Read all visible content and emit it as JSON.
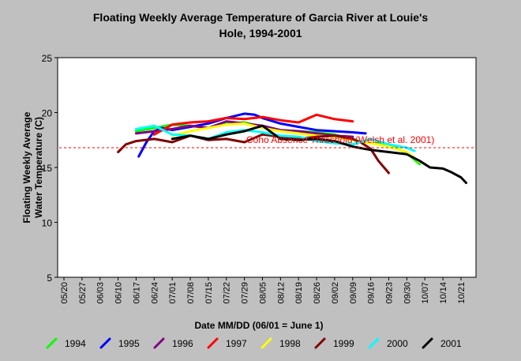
{
  "chart_data": {
    "type": "line",
    "title_line1": "Floating Weekly Average Temperature of Garcia River at Louie's",
    "title_line2": "Hole, 1994-2001",
    "xlabel": "Date MM/DD (06/01 = June 1)",
    "ylabel_line1": "Floating Weekly Average",
    "ylabel_line2": "Water Temperature (C)",
    "ylim": [
      5,
      25
    ],
    "yticks": [
      5,
      10,
      15,
      20,
      25
    ],
    "x_tick_labels": [
      "05/20",
      "05/27",
      "06/03",
      "06/10",
      "06/17",
      "06/24",
      "07/01",
      "07/08",
      "07/15",
      "07/22",
      "07/29",
      "08/05",
      "08/12",
      "08/19",
      "08/26",
      "09/02",
      "09/09",
      "09/16",
      "09/23",
      "09/30",
      "10/07",
      "10/14",
      "10/21"
    ],
    "x_tick_day_offsets": [
      0,
      7,
      14,
      21,
      28,
      35,
      42,
      49,
      56,
      63,
      70,
      77,
      84,
      91,
      98,
      105,
      112,
      119,
      126,
      133,
      140,
      147,
      154
    ],
    "xlim_days": [
      0,
      158
    ],
    "grid": false,
    "legend_position": "bottom",
    "reference_line": {
      "y": 16.8,
      "label": "Coho Absence Threshold (Welsh et al. 2001)",
      "color": "#ff0000"
    },
    "series": [
      {
        "name": "1994",
        "color": "#00ff00",
        "x": [
          28,
          35,
          42,
          49,
          56,
          63,
          70,
          77,
          84,
          91,
          98,
          105,
          112,
          119,
          126,
          133,
          138
        ],
        "y": [
          18.3,
          18.6,
          18.9,
          18.8,
          18.6,
          19.0,
          19.1,
          18.7,
          18.4,
          18.3,
          18.2,
          18.0,
          17.5,
          17.2,
          17.1,
          16.3,
          15.3
        ]
      },
      {
        "name": "1995",
        "color": "#0000ff",
        "x": [
          29,
          32,
          35,
          38,
          42,
          49,
          56,
          63,
          70,
          74,
          77,
          84,
          91,
          98,
          105,
          112,
          117
        ],
        "y": [
          16.0,
          17.3,
          18.3,
          18.6,
          18.4,
          18.7,
          19.0,
          19.5,
          19.9,
          19.8,
          19.5,
          19.0,
          18.7,
          18.4,
          18.3,
          18.2,
          18.1
        ]
      },
      {
        "name": "1996",
        "color": "#800080",
        "x": [
          28,
          35,
          42,
          49,
          56,
          63,
          70,
          77,
          84,
          91,
          98,
          105,
          112
        ],
        "y": [
          18.1,
          18.3,
          18.5,
          18.8,
          18.6,
          19.2,
          19.0,
          18.8,
          18.4,
          18.3,
          18.1,
          17.9,
          17.8
        ]
      },
      {
        "name": "1997",
        "color": "#ff0000",
        "x": [
          35,
          42,
          49,
          56,
          63,
          70,
          77,
          84,
          91,
          98,
          105,
          112
        ],
        "y": [
          18.0,
          18.9,
          19.1,
          19.2,
          19.5,
          19.4,
          19.6,
          19.3,
          19.1,
          19.8,
          19.4,
          19.2
        ]
      },
      {
        "name": "1998",
        "color": "#ffff00",
        "x": [
          42,
          49,
          56,
          63,
          70,
          77,
          84,
          91,
          98,
          105,
          112,
          119,
          126,
          133,
          138
        ],
        "y": [
          17.9,
          18.3,
          18.6,
          18.9,
          19.0,
          18.6,
          18.3,
          18.1,
          17.9,
          17.8,
          17.5,
          17.2,
          16.9,
          16.4,
          15.5
        ]
      },
      {
        "name": "1999",
        "color": "#800000",
        "x": [
          21,
          24,
          28,
          35,
          42,
          49,
          56,
          63,
          70,
          77,
          84,
          91,
          98,
          105,
          112,
          115,
          119,
          122,
          126
        ],
        "y": [
          16.4,
          17.1,
          17.4,
          17.6,
          17.3,
          17.9,
          17.5,
          17.6,
          17.3,
          18.0,
          17.8,
          17.6,
          17.8,
          17.9,
          17.6,
          17.3,
          16.7,
          15.6,
          14.5
        ]
      },
      {
        "name": "2000",
        "color": "#00ffff",
        "x": [
          28,
          35,
          42,
          49,
          56,
          63,
          70,
          77,
          84,
          91,
          98,
          105,
          112,
          119,
          126,
          133,
          136
        ],
        "y": [
          18.5,
          18.8,
          18.0,
          17.9,
          17.6,
          18.2,
          18.4,
          18.2,
          17.9,
          17.8,
          17.4,
          17.2,
          17.1,
          17.6,
          17.1,
          16.8,
          16.5
        ]
      },
      {
        "name": "2001",
        "color": "#000000",
        "x": [
          42,
          49,
          56,
          63,
          70,
          77,
          84,
          91,
          98,
          105,
          112,
          119,
          126,
          133,
          138,
          142,
          147,
          150,
          154,
          156
        ],
        "y": [
          17.6,
          17.9,
          17.6,
          18.0,
          18.3,
          18.8,
          17.6,
          17.5,
          17.6,
          17.4,
          16.9,
          16.6,
          16.4,
          16.2,
          15.6,
          15.0,
          14.9,
          14.6,
          14.1,
          13.6
        ]
      }
    ]
  }
}
